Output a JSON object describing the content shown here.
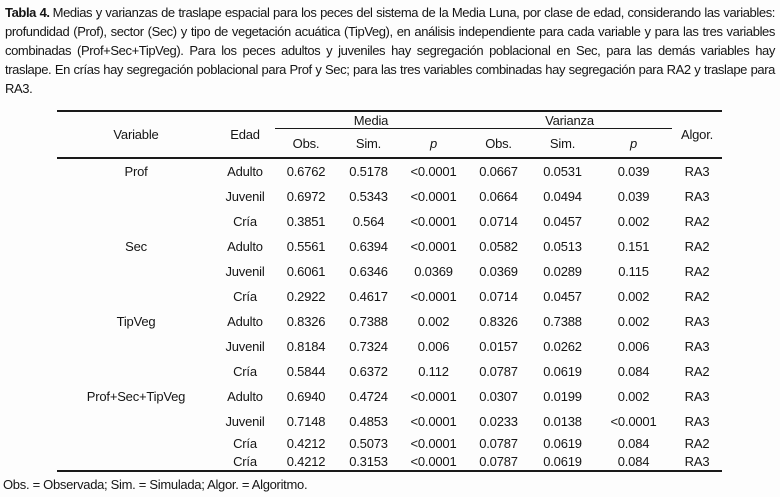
{
  "caption": {
    "label": "Tabla 4.",
    "text": "Medias y varianzas de traslape espacial para los peces del sistema de la Media Luna, por clase de edad, considerando las variables: profundidad (Prof), sector (Sec) y tipo de vegetación acuática (TipVeg), en análisis independiente para cada variable y para las tres variables combinadas (Prof+Sec+TipVeg). Para los peces adultos y juveniles hay segregación poblacional en Sec, para las demás variables hay traslape. En crías hay segregación poblacional para Prof y Sec; para las tres variables combinadas hay segregación para RA2 y traslape para RA3."
  },
  "table": {
    "headers": {
      "variable": "Variable",
      "edad": "Edad",
      "media": "Media",
      "varianza": "Varianza",
      "obs": "Obs.",
      "sim": "Sim.",
      "p": "p",
      "algor": "Algor."
    },
    "rows": [
      {
        "variable": "Prof",
        "edad": "Adulto",
        "m_obs": "0.6762",
        "m_sim": "0.5178",
        "m_p": "<0.0001",
        "v_obs": "0.0667",
        "v_sim": "0.0531",
        "v_p": "0.039",
        "algor": "RA3"
      },
      {
        "variable": "",
        "edad": "Juvenil",
        "m_obs": "0.6972",
        "m_sim": "0.5343",
        "m_p": "<0.0001",
        "v_obs": "0.0664",
        "v_sim": "0.0494",
        "v_p": "0.039",
        "algor": "RA3"
      },
      {
        "variable": "",
        "edad": "Cría",
        "m_obs": "0.3851",
        "m_sim": "0.564",
        "m_p": "<0.0001",
        "v_obs": "0.0714",
        "v_sim": "0.0457",
        "v_p": "0.002",
        "algor": "RA2"
      },
      {
        "variable": "Sec",
        "edad": "Adulto",
        "m_obs": "0.5561",
        "m_sim": "0.6394",
        "m_p": "<0.0001",
        "v_obs": "0.0582",
        "v_sim": "0.0513",
        "v_p": "0.151",
        "algor": "RA2"
      },
      {
        "variable": "",
        "edad": "Juvenil",
        "m_obs": "0.6061",
        "m_sim": "0.6346",
        "m_p": "0.0369",
        "v_obs": "0.0369",
        "v_sim": "0.0289",
        "v_p": "0.115",
        "algor": "RA2"
      },
      {
        "variable": "",
        "edad": "Cría",
        "m_obs": "0.2922",
        "m_sim": "0.4617",
        "m_p": "<0.0001",
        "v_obs": "0.0714",
        "v_sim": "0.0457",
        "v_p": "0.002",
        "algor": "RA2"
      },
      {
        "variable": "TipVeg",
        "edad": "Adulto",
        "m_obs": "0.8326",
        "m_sim": "0.7388",
        "m_p": "0.002",
        "v_obs": "0.8326",
        "v_sim": "0.7388",
        "v_p": "0.002",
        "algor": "RA3"
      },
      {
        "variable": "",
        "edad": "Juvenil",
        "m_obs": "0.8184",
        "m_sim": "0.7324",
        "m_p": "0.006",
        "v_obs": "0.0157",
        "v_sim": "0.0262",
        "v_p": "0.006",
        "algor": "RA3"
      },
      {
        "variable": "",
        "edad": "Cría",
        "m_obs": "0.5844",
        "m_sim": "0.6372",
        "m_p": "0.112",
        "v_obs": "0.0787",
        "v_sim": "0.0619",
        "v_p": "0.084",
        "algor": "RA2"
      },
      {
        "variable": "Prof+Sec+TipVeg",
        "edad": "Adulto",
        "m_obs": "0.6940",
        "m_sim": "0.4724",
        "m_p": "<0.0001",
        "v_obs": "0.0307",
        "v_sim": "0.0199",
        "v_p": "0.002",
        "algor": "RA3"
      },
      {
        "variable": "",
        "edad": "Juvenil",
        "m_obs": "0.7148",
        "m_sim": "0.4853",
        "m_p": "<0.0001",
        "v_obs": "0.0233",
        "v_sim": "0.0138",
        "v_p": "<0.0001",
        "algor": "RA3"
      },
      {
        "variable": "",
        "edad": "Cría",
        "m_obs": "0.4212",
        "m_sim": "0.5073",
        "m_p": "<0.0001",
        "v_obs": "0.0787",
        "v_sim": "0.0619",
        "v_p": "0.084",
        "algor": "RA2"
      },
      {
        "variable": "",
        "edad": "Cría",
        "m_obs": "0.4212",
        "m_sim": "0.3153",
        "m_p": "<0.0001",
        "v_obs": "0.0787",
        "v_sim": "0.0619",
        "v_p": "0.084",
        "algor": "RA3"
      }
    ]
  },
  "footnote": "Obs. = Observada; Sim. = Simulada; Algor. = Algoritmo.",
  "colors": {
    "text": "#151515",
    "rule": "#1a1a1a",
    "background": "#fdfdfd"
  }
}
